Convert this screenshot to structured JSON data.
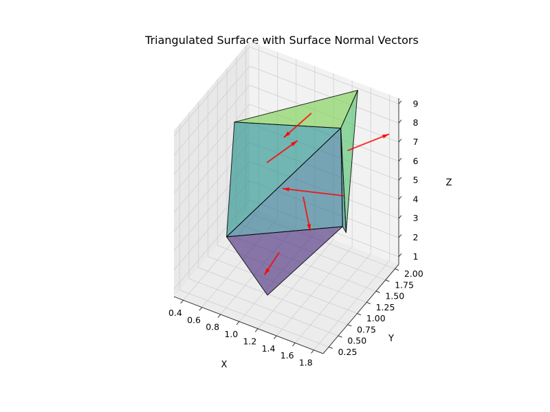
{
  "chart_data": {
    "type": "surface3d",
    "title": "Triangulated Surface with Surface Normal Vectors",
    "xlabel": "X",
    "ylabel": "Y",
    "zlabel": "Z",
    "x_ticks": [
      "0.4",
      "0.6",
      "0.8",
      "1.0",
      "1.2",
      "1.4",
      "1.6",
      "1.8"
    ],
    "y_ticks": [
      "0.25",
      "0.50",
      "0.75",
      "1.00",
      "1.25",
      "1.50",
      "1.75",
      "2.00"
    ],
    "z_ticks": [
      "1",
      "2",
      "3",
      "4",
      "5",
      "6",
      "7",
      "8",
      "9"
    ],
    "xlim": [
      0.3,
      1.9
    ],
    "ylim": [
      0.1,
      2.1
    ],
    "zlim": [
      0.6,
      9.3
    ],
    "grid": true,
    "colormap": "viridis",
    "normal_color": "#ff0000",
    "edge_color": "#000000",
    "vertices": [
      {
        "x": 0.5,
        "y": 1.0,
        "z": 2.0
      },
      {
        "x": 0.3,
        "y": 1.7,
        "z": 6.0
      },
      {
        "x": 1.1,
        "y": 0.6,
        "z": 1.0
      },
      {
        "x": 1.5,
        "y": 1.6,
        "z": 3.0
      },
      {
        "x": 1.7,
        "y": 1.2,
        "z": 4.0
      },
      {
        "x": 1.4,
        "y": 1.8,
        "z": 7.5
      },
      {
        "x": 1.5,
        "y": 2.0,
        "z": 9.2
      }
    ],
    "triangles": [
      [
        0,
        2,
        3
      ],
      [
        0,
        3,
        5
      ],
      [
        0,
        1,
        5
      ],
      [
        1,
        5,
        6
      ],
      [
        3,
        4,
        5
      ],
      [
        4,
        5,
        6
      ]
    ]
  }
}
